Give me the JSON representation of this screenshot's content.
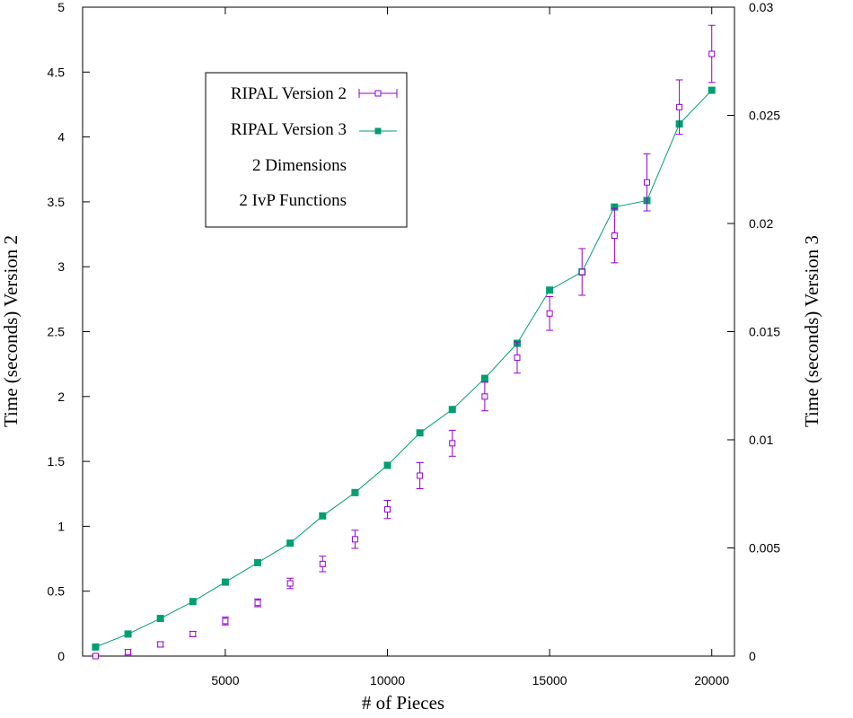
{
  "chart_data": {
    "type": "scatter",
    "xlabel": "# of Pieces",
    "ylabel_left": "Time (seconds) Version 2",
    "ylabel_right": "Time (seconds) Version 3",
    "xlim": [
      600,
      20700
    ],
    "ylim_left": [
      0,
      5
    ],
    "ylim_right": [
      0,
      0.03
    ],
    "x_ticks": [
      5000,
      10000,
      15000,
      20000
    ],
    "y_ticks_left": [
      0,
      0.5,
      1,
      1.5,
      2,
      2.5,
      3,
      3.5,
      4,
      4.5,
      5
    ],
    "y_ticks_right": [
      0,
      0.005,
      0.01,
      0.015,
      0.02,
      0.025,
      0.03
    ],
    "grid": false,
    "legend_position": "top-left",
    "legend_notes": [
      "2 Dimensions",
      "2 IvP Functions"
    ],
    "series": [
      {
        "name": "RIPAL Version 2",
        "axis": "left",
        "style": "open-square-errorbars",
        "color": "#9400d3",
        "x": [
          1000,
          2000,
          3000,
          4000,
          5000,
          6000,
          7000,
          8000,
          9000,
          10000,
          11000,
          12000,
          13000,
          14000,
          15000,
          16000,
          17000,
          18000,
          19000,
          20000
        ],
        "y": [
          0.0,
          0.03,
          0.09,
          0.17,
          0.27,
          0.41,
          0.56,
          0.71,
          0.9,
          1.13,
          1.39,
          1.64,
          2.0,
          2.3,
          2.64,
          2.96,
          3.24,
          3.65,
          4.23,
          4.64
        ],
        "err": [
          0.01,
          0.02,
          0.02,
          0.02,
          0.03,
          0.03,
          0.04,
          0.06,
          0.07,
          0.07,
          0.1,
          0.1,
          0.11,
          0.12,
          0.13,
          0.18,
          0.21,
          0.22,
          0.21,
          0.22
        ]
      },
      {
        "name": "RIPAL Version 3",
        "axis": "right",
        "style": "filled-square-line",
        "color": "#009e73",
        "x": [
          1000,
          2000,
          3000,
          4000,
          5000,
          6000,
          7000,
          8000,
          9000,
          10000,
          11000,
          12000,
          13000,
          14000,
          15000,
          16000,
          17000,
          18000,
          19000,
          20000
        ],
        "y": [
          0.00042,
          0.00102,
          0.00174,
          0.00252,
          0.00342,
          0.00432,
          0.00522,
          0.00648,
          0.00756,
          0.00882,
          0.01032,
          0.0114,
          0.01284,
          0.01446,
          0.01692,
          0.01776,
          0.02076,
          0.02106,
          0.0246,
          0.02616
        ]
      }
    ]
  }
}
